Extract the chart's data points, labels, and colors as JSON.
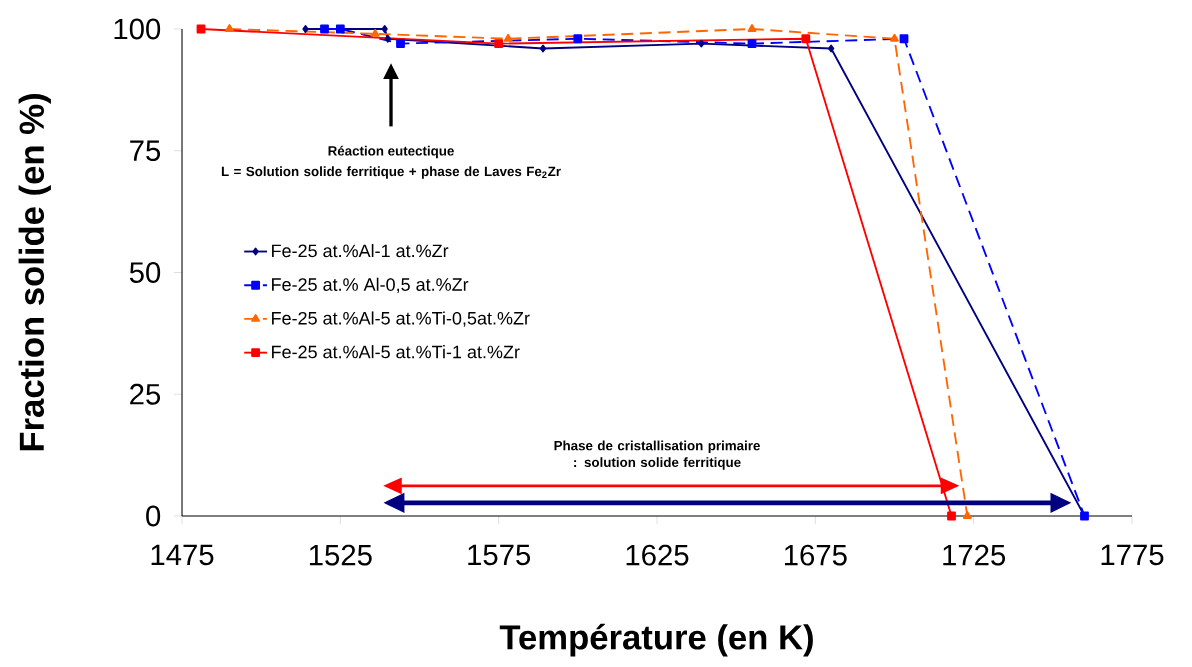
{
  "chart_data": {
    "type": "line",
    "xlabel": "Température (en K)",
    "ylabel": "Fraction solide (en %)",
    "xlim": [
      1475,
      1775
    ],
    "xticks": [
      1475,
      1525,
      1575,
      1625,
      1675,
      1725,
      1775
    ],
    "ylim": [
      0,
      100
    ],
    "yticks": [
      0,
      25,
      50,
      75,
      100
    ],
    "grid": false,
    "legend": "left",
    "series": [
      {
        "name": "Fe-25 at.%Al-1 at.%Zr",
        "color": "#000080",
        "marker": "diamond",
        "line_style": "solid",
        "x": [
          1514,
          1539,
          1540,
          1589,
          1639,
          1680,
          1760
        ],
        "values": [
          100,
          100,
          98,
          96,
          97,
          96,
          0
        ]
      },
      {
        "name": "Fe-25 at.% Al-0,5 at.%Zr",
        "color": "#0000ff",
        "marker": "square",
        "line_style": "dashed",
        "x": [
          1520,
          1525,
          1544,
          1600,
          1655,
          1703,
          1760
        ],
        "values": [
          100,
          100,
          97,
          98,
          97,
          98,
          0
        ]
      },
      {
        "name": "Fe-25 at.%Al-5 at.%Ti-0,5at.%Zr",
        "color": "#ff6600",
        "marker": "triangle",
        "line_style": "dashed",
        "x": [
          1490,
          1536,
          1578,
          1655,
          1700,
          1723
        ],
        "values": [
          100,
          99,
          98,
          100,
          98,
          0
        ]
      },
      {
        "name": "Fe-25 at.%Al-5 at.%Ti-1 at.%Zr",
        "color": "#ff0000",
        "marker": "square",
        "line_style": "solid",
        "x": [
          1481,
          1575,
          1672,
          1718
        ],
        "values": [
          100,
          97,
          98,
          0
        ]
      }
    ],
    "annotations": [
      "Réaction eutectique",
      "L = Solution solide ferritique + phase de Laves Fe$_{2}$Zr",
      "Phase de cristallisation primaire : solution solide ferritique"
    ]
  }
}
